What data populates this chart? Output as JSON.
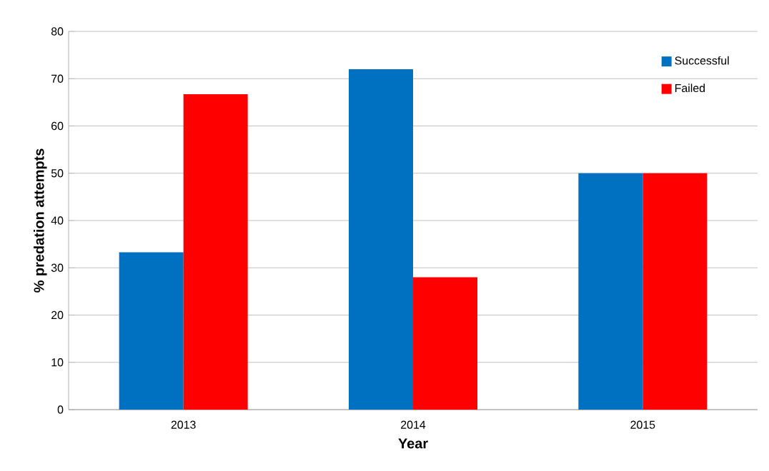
{
  "chart_data": {
    "type": "bar",
    "xlabel": "Year",
    "ylabel": "% predation attempts",
    "categories": [
      "2013",
      "2014",
      "2015"
    ],
    "series": [
      {
        "name": "Successful",
        "color": "#0070c0",
        "values": [
          33.3,
          72,
          50
        ]
      },
      {
        "name": "Failed",
        "color": "#ff0000",
        "values": [
          66.7,
          28,
          50
        ]
      }
    ],
    "ylim": [
      0,
      80
    ],
    "yticks": [
      0,
      10,
      20,
      30,
      40,
      50,
      60,
      70,
      80
    ],
    "grid": "y",
    "legend": "top right"
  }
}
